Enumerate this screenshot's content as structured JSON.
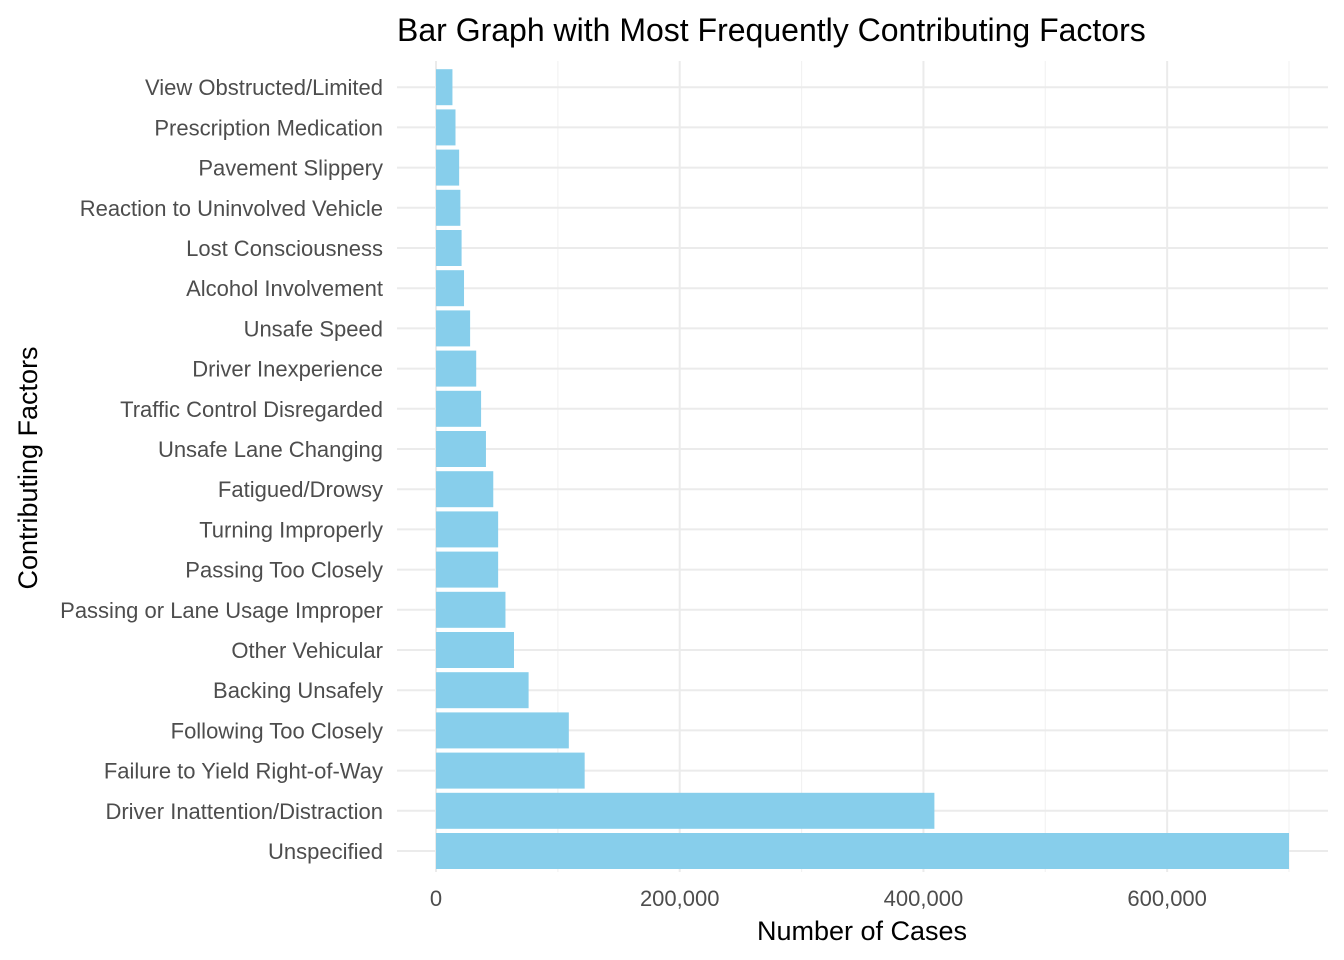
{
  "chart_data": {
    "type": "bar",
    "orientation": "horizontal",
    "title": "Bar Graph with Most Frequently Contributing Factors",
    "xlabel": "Number of Cases",
    "ylabel": "Contributing Factors",
    "bar_color": "#87CEEB",
    "grid": true,
    "xlim": [
      -32000,
      732000
    ],
    "xticks": [
      0,
      200000,
      400000,
      600000
    ],
    "xtick_labels": [
      "0",
      "200,000",
      "400,000",
      "600,000"
    ],
    "categories": [
      "Unspecified",
      "Driver Inattention/Distraction",
      "Failure to Yield Right-of-Way",
      "Following Too Closely",
      "Backing Unsafely",
      "Other Vehicular",
      "Passing or Lane Usage Improper",
      "Passing Too Closely",
      "Turning Improperly",
      "Fatigued/Drowsy",
      "Unsafe Lane Changing",
      "Traffic Control Disregarded",
      "Driver Inexperience",
      "Unsafe Speed",
      "Alcohol Involvement",
      "Lost Consciousness",
      "Reaction to Uninvolved Vehicle",
      "Pavement Slippery",
      "Prescription Medication",
      "View Obstructed/Limited"
    ],
    "values": [
      700000,
      409000,
      122000,
      109000,
      76000,
      64000,
      57000,
      51000,
      51000,
      47000,
      41000,
      37000,
      33000,
      28000,
      23000,
      21000,
      20000,
      19000,
      16000,
      13500
    ]
  }
}
